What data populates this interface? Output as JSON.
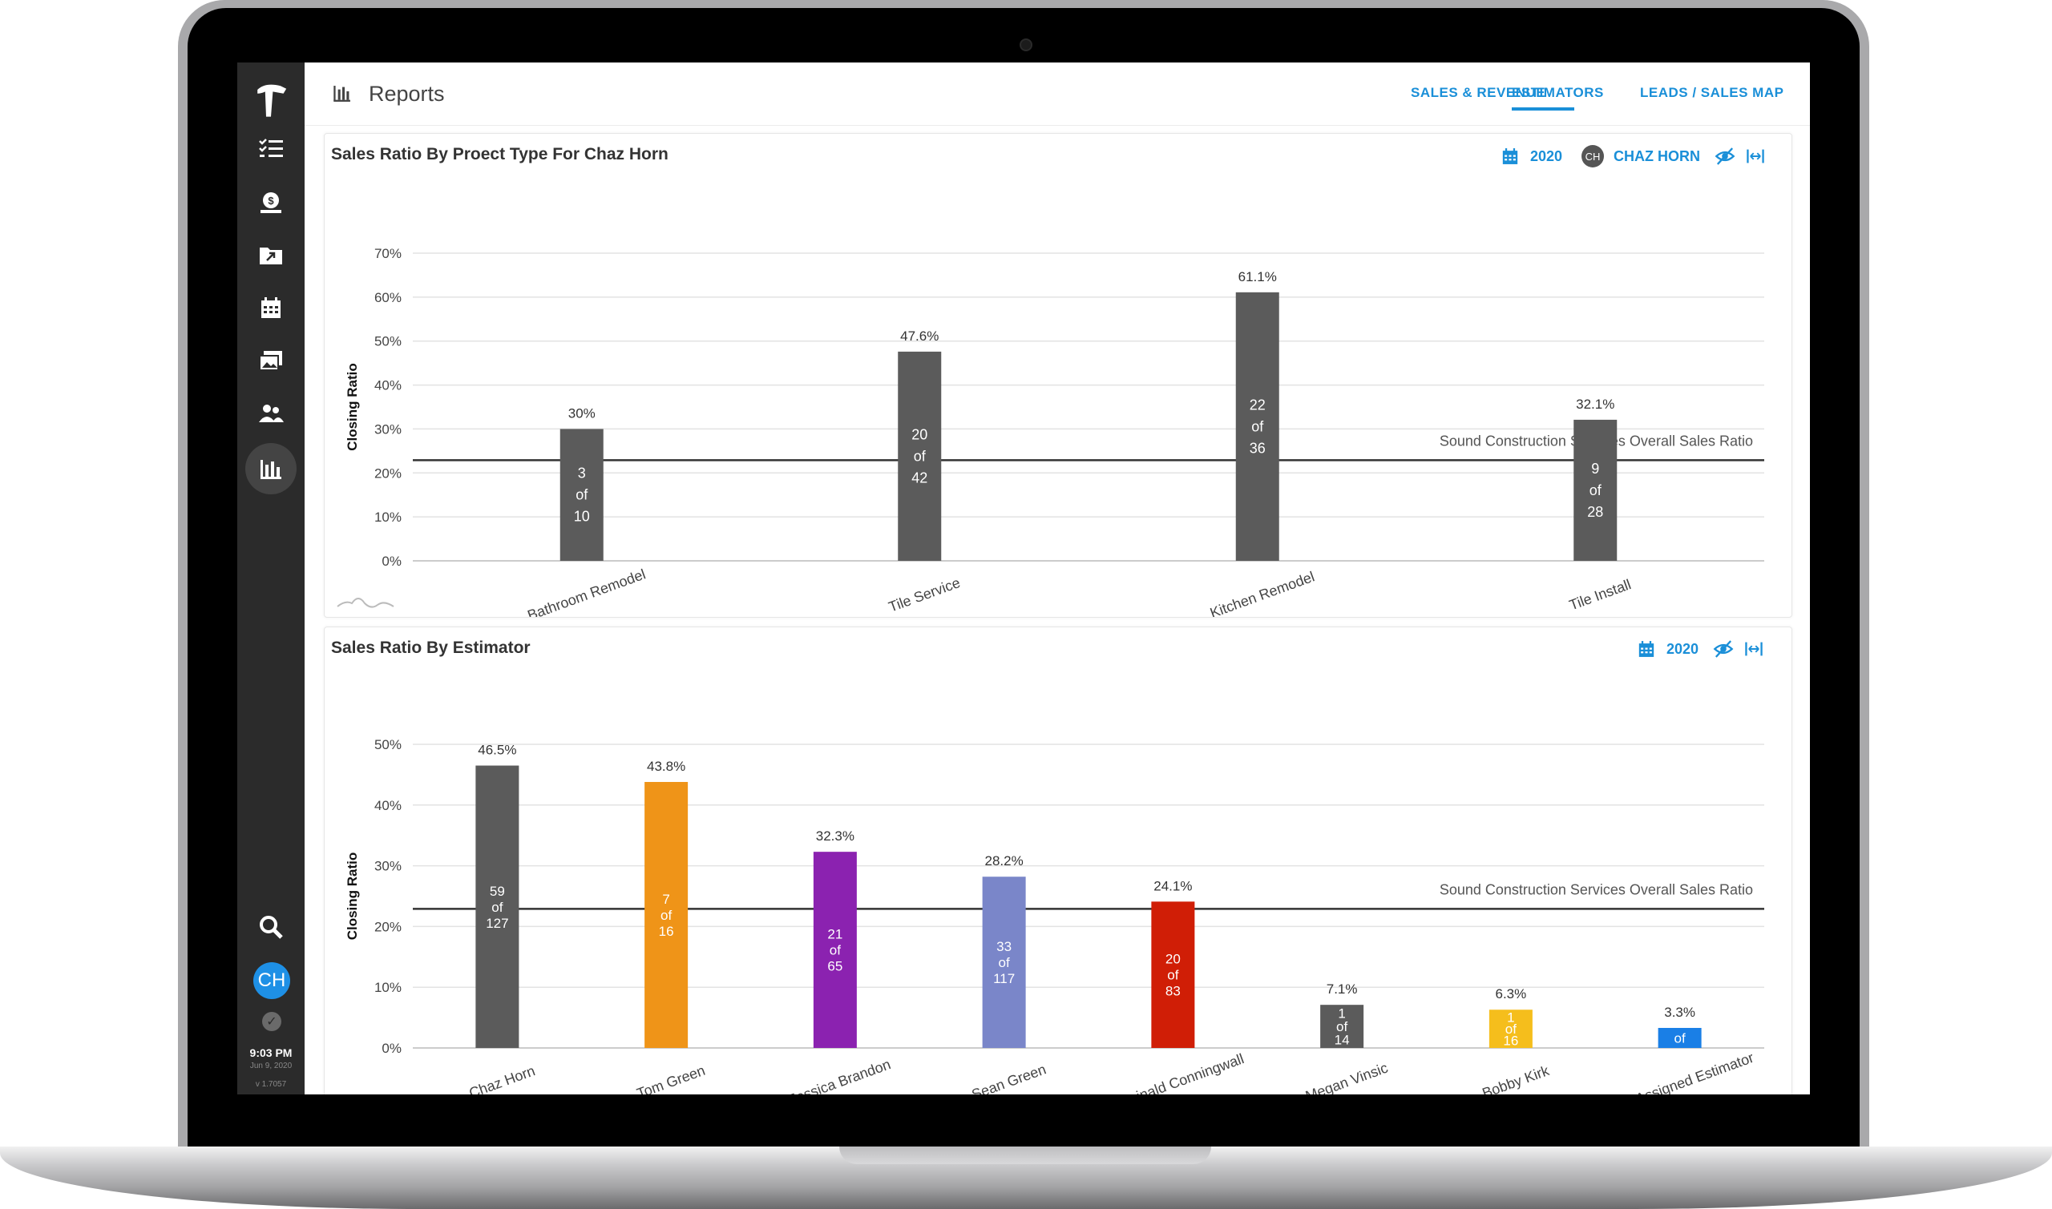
{
  "app": {
    "title": "Reports",
    "time": "9:03 PM",
    "date": "Jun 9, 2020",
    "version": "v 1.7057",
    "user_initials": "CH",
    "accent": "#1a8fd8"
  },
  "sidebar": {
    "items": [
      {
        "icon": "hammer-logo-icon"
      },
      {
        "icon": "task-list-icon"
      },
      {
        "icon": "money-bag-icon"
      },
      {
        "icon": "folder-arrow-icon"
      },
      {
        "icon": "calendar-icon"
      },
      {
        "icon": "photos-icon"
      },
      {
        "icon": "people-icon"
      },
      {
        "icon": "reports-icon",
        "active": true
      }
    ],
    "bottom": [
      {
        "icon": "search-icon"
      },
      {
        "icon": "avatar"
      },
      {
        "icon": "check-icon"
      }
    ]
  },
  "nav": {
    "tabs": [
      {
        "label": "SALES & REVENUE"
      },
      {
        "label": "ESTIMATORS",
        "active": true
      },
      {
        "label": "LEADS / SALES MAP"
      }
    ]
  },
  "panel1": {
    "title": "Sales Ratio By Proect Type For Chaz Horn",
    "year": "2020",
    "estimator_initials": "CH",
    "estimator": "CHAZ HORN"
  },
  "panel2": {
    "title": "Sales Ratio By Estimator",
    "year": "2020"
  },
  "chart_data": [
    {
      "type": "bar",
      "title": "Sales Ratio By Proect Type For Chaz Horn",
      "ylabel": "Closing Ratio",
      "ylim": [
        0,
        70
      ],
      "yticks": [
        "0%",
        "10%",
        "20%",
        "30%",
        "40%",
        "50%",
        "60%",
        "70%"
      ],
      "categories": [
        "Bathroom Remodel",
        "Tile Service",
        "Kitchen Remodel",
        "Tile Install"
      ],
      "values": [
        30,
        47.6,
        61.1,
        32.1
      ],
      "value_labels": [
        "30%",
        "47.6%",
        "61.1%",
        "32.1%"
      ],
      "inner_labels": [
        [
          "3",
          "of",
          "10"
        ],
        [
          "20",
          "of",
          "42"
        ],
        [
          "22",
          "of",
          "36"
        ],
        [
          "9",
          "of",
          "28"
        ]
      ],
      "colors": [
        "#5b5b5b",
        "#5b5b5b",
        "#5b5b5b",
        "#5b5b5b"
      ],
      "reference_line": {
        "value": 22.9,
        "label": "Sound Construction Services Overall Sales Ratio"
      },
      "grid": true
    },
    {
      "type": "bar",
      "title": "Sales Ratio By Estimator",
      "ylabel": "Closing Ratio",
      "ylim": [
        0,
        50
      ],
      "yticks": [
        "0%",
        "10%",
        "20%",
        "30%",
        "40%",
        "50%"
      ],
      "categories": [
        "Chaz Horn",
        "Tom Green",
        "Jessica Brandon",
        "Sean Green",
        "Reginald Conningwall",
        "Megan Vinsic",
        "Bobby Kirk",
        "No Assigned Estimator"
      ],
      "values": [
        46.5,
        43.8,
        32.3,
        28.2,
        24.1,
        7.1,
        6.3,
        3.3
      ],
      "value_labels": [
        "46.5%",
        "43.8%",
        "32.3%",
        "28.2%",
        "24.1%",
        "7.1%",
        "6.3%",
        "3.3%"
      ],
      "inner_labels": [
        [
          "59",
          "of",
          "127"
        ],
        [
          "7",
          "of",
          "16"
        ],
        [
          "21",
          "of",
          "65"
        ],
        [
          "33",
          "of",
          "117"
        ],
        [
          "20",
          "of",
          "83"
        ],
        [
          "1",
          "of",
          "14"
        ],
        [
          "1",
          "of",
          "16"
        ],
        [
          "of"
        ]
      ],
      "colors": [
        "#5b5b5b",
        "#ef9418",
        "#8b22b0",
        "#7a86c9",
        "#d01e06",
        "#5b5b5b",
        "#f5be1c",
        "#1a7fe6"
      ],
      "reference_line": {
        "value": 22.9,
        "label": "Sound Construction Services Overall Sales Ratio"
      },
      "grid": true
    }
  ]
}
